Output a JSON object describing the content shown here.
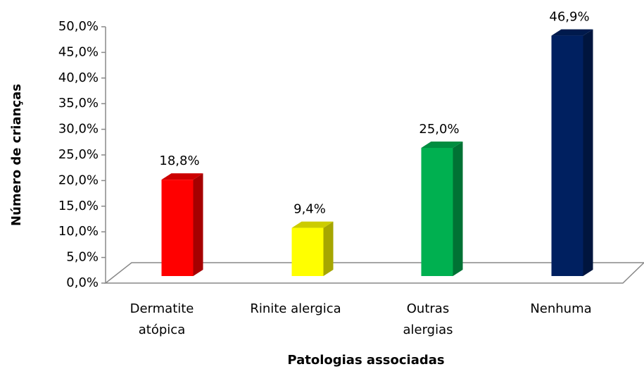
{
  "chart_data": {
    "type": "bar3d",
    "x_label": "Patologias associadas",
    "y_label": "Número de crianças",
    "categories": [
      "Dermatite\natópica",
      "Rinite alergica",
      "Outras\nalergias",
      "Nenhuma"
    ],
    "values": [
      18.8,
      9.4,
      25.0,
      46.9
    ],
    "value_labels": [
      "18,8%",
      "9,4%",
      "25,0%",
      "46,9%"
    ],
    "colors": [
      "#ff0000",
      "#ffff00",
      "#00b050",
      "#002060"
    ],
    "ylim": [
      0,
      50
    ],
    "yticks": [
      {
        "value": 0,
        "label": "0,0%"
      },
      {
        "value": 5,
        "label": "5,0%"
      },
      {
        "value": 10,
        "label": "10,0%"
      },
      {
        "value": 15,
        "label": "15,0%"
      },
      {
        "value": 20,
        "label": "20,0%"
      },
      {
        "value": 25,
        "label": "25,0%"
      },
      {
        "value": 30,
        "label": "30,0%"
      },
      {
        "value": 35,
        "label": "35,0%"
      },
      {
        "value": 40,
        "label": "40,0%"
      },
      {
        "value": 45,
        "label": "45,0%"
      },
      {
        "value": 50,
        "label": "50,0%"
      }
    ]
  }
}
